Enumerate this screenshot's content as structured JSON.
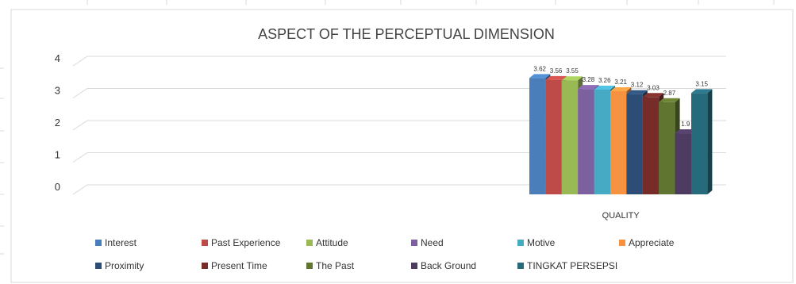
{
  "chart_data": {
    "type": "bar",
    "title": "ASPECT  OF THE PERCEPTUAL DIMENSION",
    "categories": [
      "QUALITY"
    ],
    "ylim": [
      0,
      4
    ],
    "yticks": [
      "0",
      "1",
      "2",
      "3",
      "4"
    ],
    "grid": true,
    "legend_position": "bottom",
    "series": [
      {
        "name": "Interest",
        "values": [
          3.62
        ],
        "label": "3.62",
        "color": "#4a7ebb"
      },
      {
        "name": "Past Experience",
        "values": [
          3.56
        ],
        "label": "3.56",
        "color": "#be4b48"
      },
      {
        "name": "Attitude",
        "values": [
          3.55
        ],
        "label": "3.55",
        "color": "#98b954"
      },
      {
        "name": "Need",
        "values": [
          3.28
        ],
        "label": "3.28",
        "color": "#7d60a0"
      },
      {
        "name": "Motive",
        "values": [
          3.26
        ],
        "label": "3.26",
        "color": "#46aac5"
      },
      {
        "name": "Appreciate",
        "values": [
          3.21
        ],
        "label": "3.21",
        "color": "#f69240"
      },
      {
        "name": "Proximity",
        "values": [
          3.12
        ],
        "label": "3.12",
        "color": "#2c4d75"
      },
      {
        "name": "Present Time",
        "values": [
          3.03
        ],
        "label": "3.03",
        "color": "#772c2a"
      },
      {
        "name": "The Past",
        "values": [
          2.87
        ],
        "label": "2.87",
        "color": "#5f7530"
      },
      {
        "name": "Back Ground",
        "values": [
          1.9
        ],
        "label": "1.9",
        "color": "#4d3b62"
      },
      {
        "name": "TINGKAT PERSEPSI",
        "values": [
          3.15
        ],
        "label": "3.15",
        "color": "#276a7c"
      }
    ]
  }
}
